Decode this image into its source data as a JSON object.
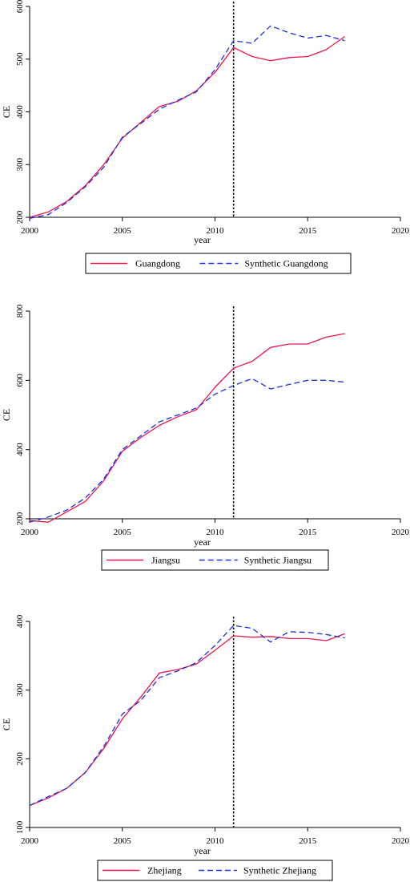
{
  "chart_data": [
    {
      "type": "line",
      "xlabel": "year",
      "ylabel": "CE",
      "xlim": [
        2000,
        2020
      ],
      "ylim": [
        200,
        600
      ],
      "xticks": [
        2000,
        2005,
        2010,
        2015,
        2020
      ],
      "yticks": [
        200,
        300,
        400,
        500,
        600
      ],
      "x": [
        2000,
        2001,
        2002,
        2003,
        2004,
        2005,
        2006,
        2007,
        2008,
        2009,
        2010,
        2011,
        2012,
        2013,
        2014,
        2015,
        2016,
        2017
      ],
      "series": [
        {
          "name": "Guangdong",
          "color": "#e8174f",
          "dash": "solid",
          "values": [
            200,
            210,
            230,
            260,
            300,
            350,
            380,
            410,
            420,
            440,
            475,
            522,
            505,
            497,
            503,
            505,
            518,
            543
          ]
        },
        {
          "name": "Synthetic Guangdong",
          "color": "#1a2fe6",
          "dash": "dashed",
          "values": [
            198,
            205,
            228,
            258,
            295,
            352,
            378,
            405,
            422,
            438,
            480,
            535,
            530,
            563,
            550,
            540,
            545,
            535
          ]
        }
      ],
      "vline_x": 2011,
      "legend_position": "bottom",
      "grid": false
    },
    {
      "type": "line",
      "xlabel": "year",
      "ylabel": "CE",
      "xlim": [
        2000,
        2020
      ],
      "ylim": [
        200,
        800
      ],
      "xticks": [
        2000,
        2005,
        2010,
        2015,
        2020
      ],
      "yticks": [
        200,
        400,
        600,
        800
      ],
      "x": [
        2000,
        2001,
        2002,
        2003,
        2004,
        2005,
        2006,
        2007,
        2008,
        2009,
        2010,
        2011,
        2012,
        2013,
        2014,
        2015,
        2016,
        2017
      ],
      "series": [
        {
          "name": "Jiangsu",
          "color": "#e8174f",
          "dash": "solid",
          "values": [
            195,
            190,
            220,
            250,
            310,
            395,
            435,
            470,
            495,
            515,
            580,
            635,
            655,
            695,
            705,
            705,
            725,
            735
          ]
        },
        {
          "name": "Synthetic Jiangsu",
          "color": "#1a2fe6",
          "dash": "dashed",
          "values": [
            190,
            205,
            225,
            260,
            315,
            400,
            440,
            480,
            500,
            520,
            560,
            585,
            605,
            575,
            588,
            600,
            600,
            595
          ]
        }
      ],
      "vline_x": 2011,
      "legend_position": "bottom",
      "grid": false
    },
    {
      "type": "line",
      "xlabel": "year",
      "ylabel": "CE",
      "xlim": [
        2000,
        2020
      ],
      "ylim": [
        100,
        400
      ],
      "xticks": [
        2000,
        2005,
        2010,
        2015,
        2020
      ],
      "yticks": [
        100,
        200,
        300,
        400
      ],
      "x": [
        2000,
        2001,
        2002,
        2003,
        2004,
        2005,
        2006,
        2007,
        2008,
        2009,
        2010,
        2011,
        2012,
        2013,
        2014,
        2015,
        2016,
        2017
      ],
      "series": [
        {
          "name": "Zhejiang",
          "color": "#e8174f",
          "dash": "solid",
          "values": [
            132,
            143,
            157,
            180,
            215,
            258,
            290,
            325,
            330,
            338,
            358,
            379,
            377,
            378,
            375,
            375,
            372,
            382
          ]
        },
        {
          "name": "Synthetic Zhejiang",
          "color": "#1a2fe6",
          "dash": "dashed",
          "values": [
            132,
            145,
            157,
            180,
            218,
            265,
            285,
            318,
            328,
            340,
            365,
            394,
            390,
            370,
            385,
            384,
            381,
            376
          ]
        }
      ],
      "vline_x": 2011,
      "legend_position": "bottom",
      "grid": false
    }
  ]
}
